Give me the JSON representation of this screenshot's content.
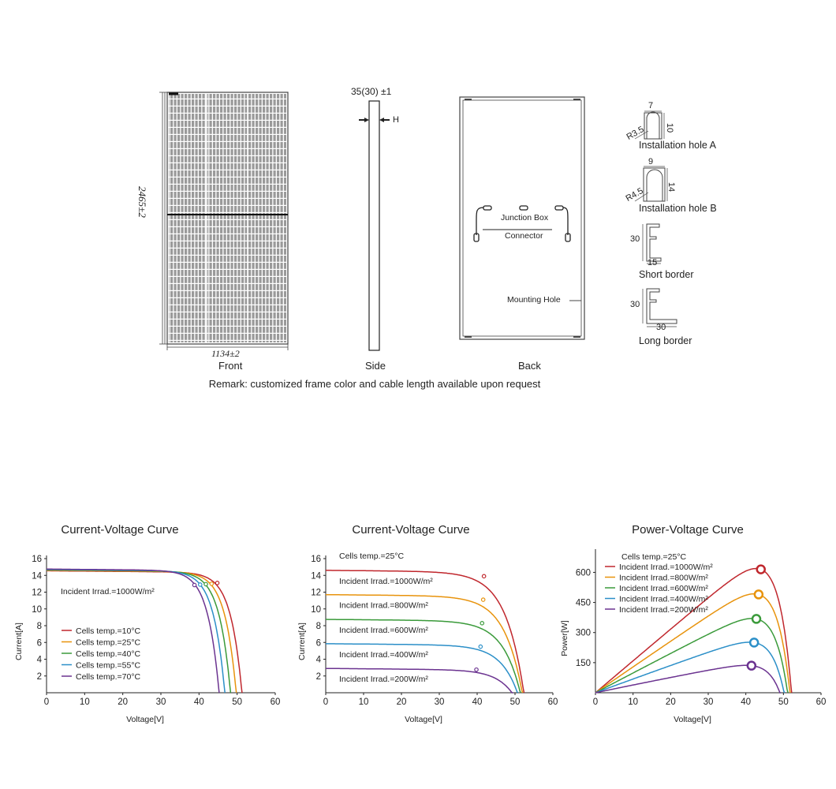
{
  "drawings": {
    "front": {
      "caption": "Front",
      "height_dim": "2465±2",
      "width_dim": "1134±2"
    },
    "side": {
      "caption": "Side",
      "thickness_dim": "35(30) ±1",
      "h_label": "H"
    },
    "back": {
      "caption": "Back",
      "junction_box": "Junction Box",
      "connector": "Connector",
      "mounting_hole": "Mounting Hole"
    },
    "details": [
      {
        "caption": "Installation hole A",
        "width": "7",
        "height": "10",
        "radius": "R3.5"
      },
      {
        "caption": "Installation hole B",
        "width": "9",
        "height": "14",
        "radius": "R4.5"
      },
      {
        "caption": "Short border",
        "height": "30",
        "width": "15"
      },
      {
        "caption": "Long border",
        "height": "30",
        "width": "30"
      }
    ],
    "remark": "Remark: customized frame color and cable length available upon request"
  },
  "chart_data": [
    {
      "type": "line",
      "title": "Current-Voltage Curve",
      "xlabel": "Voltage[V]",
      "ylabel": "Current[A]",
      "xlim": [
        0,
        60
      ],
      "ylim": [
        0,
        16
      ],
      "xticks": [
        0,
        10,
        20,
        30,
        40,
        50,
        60
      ],
      "yticks": [
        2,
        4,
        6,
        8,
        10,
        12,
        14,
        16
      ],
      "annotation": "Incident Irrad.=1000W/m²",
      "series": [
        {
          "name": "Cells temp.=10°C",
          "color": "#c0272d",
          "isc": 14.55,
          "voc": 51.3,
          "vmp": 44.8,
          "imp": 13.1
        },
        {
          "name": "Cells temp.=25°C",
          "color": "#e8930c",
          "isc": 14.6,
          "voc": 49.8,
          "vmp": 43.3,
          "imp": 13.0
        },
        {
          "name": "Cells temp.=40°C",
          "color": "#3a9a3a",
          "isc": 14.65,
          "voc": 48.3,
          "vmp": 41.8,
          "imp": 12.95
        },
        {
          "name": "Cells temp.=55°C",
          "color": "#2b8fc8",
          "isc": 14.7,
          "voc": 46.8,
          "vmp": 40.3,
          "imp": 12.9
        },
        {
          "name": "Cells temp.=70°C",
          "color": "#6b3390",
          "isc": 14.75,
          "voc": 45.3,
          "vmp": 38.8,
          "imp": 12.85
        }
      ]
    },
    {
      "type": "line",
      "title": "Current-Voltage Curve",
      "xlabel": "Voltage[V]",
      "ylabel": "Current[A]",
      "xlim": [
        0,
        60
      ],
      "ylim": [
        0,
        16
      ],
      "xticks": [
        0,
        10,
        20,
        30,
        40,
        50,
        60
      ],
      "yticks": [
        2,
        4,
        6,
        8,
        10,
        12,
        14,
        16
      ],
      "annotation": "Cells temp.=25°C",
      "series": [
        {
          "name": "Incident Irrad.=1000W/m²",
          "color": "#c0272d",
          "isc": 14.6,
          "voc": 52.4,
          "vmp": 41.8,
          "imp": 13.9
        },
        {
          "name": "Incident Irrad.=800W/m²",
          "color": "#e8930c",
          "isc": 11.7,
          "voc": 52.0,
          "vmp": 41.6,
          "imp": 11.1
        },
        {
          "name": "Incident Irrad.=600W/m²",
          "color": "#3a9a3a",
          "isc": 8.75,
          "voc": 51.5,
          "vmp": 41.3,
          "imp": 8.3
        },
        {
          "name": "Incident Irrad.=400W/m²",
          "color": "#2b8fc8",
          "isc": 5.85,
          "voc": 50.8,
          "vmp": 40.9,
          "imp": 5.5
        },
        {
          "name": "Incident Irrad.=200W/m²",
          "color": "#6b3390",
          "isc": 2.9,
          "voc": 49.5,
          "vmp": 39.8,
          "imp": 2.75
        }
      ]
    },
    {
      "type": "line",
      "title": "Power-Voltage Curve",
      "xlabel": "Voltage[V]",
      "ylabel": "Power[W]",
      "xlim": [
        0,
        60
      ],
      "ylim": [
        0,
        700
      ],
      "xticks": [
        0,
        10,
        20,
        30,
        40,
        50,
        60
      ],
      "yticks": [
        150,
        300,
        450,
        600
      ],
      "annotation": "Cells temp.=25°C",
      "series": [
        {
          "name": "Incident Irrad.=1000W/m²",
          "color": "#c0272d",
          "isc": 14.6,
          "voc": 52.2,
          "vmp": 44.0,
          "pmax": 615
        },
        {
          "name": "Incident Irrad.=800W/m²",
          "color": "#e8930c",
          "isc": 11.7,
          "voc": 51.8,
          "vmp": 43.4,
          "pmax": 490
        },
        {
          "name": "Incident Irrad.=600W/m²",
          "color": "#3a9a3a",
          "isc": 8.75,
          "voc": 51.2,
          "vmp": 42.8,
          "pmax": 368
        },
        {
          "name": "Incident Irrad.=400W/m²",
          "color": "#2b8fc8",
          "isc": 5.85,
          "voc": 50.3,
          "vmp": 42.2,
          "pmax": 250
        },
        {
          "name": "Incident Irrad.=200W/m²",
          "color": "#6b3390",
          "isc": 2.9,
          "voc": 49.3,
          "vmp": 41.5,
          "pmax": 135
        }
      ]
    }
  ]
}
